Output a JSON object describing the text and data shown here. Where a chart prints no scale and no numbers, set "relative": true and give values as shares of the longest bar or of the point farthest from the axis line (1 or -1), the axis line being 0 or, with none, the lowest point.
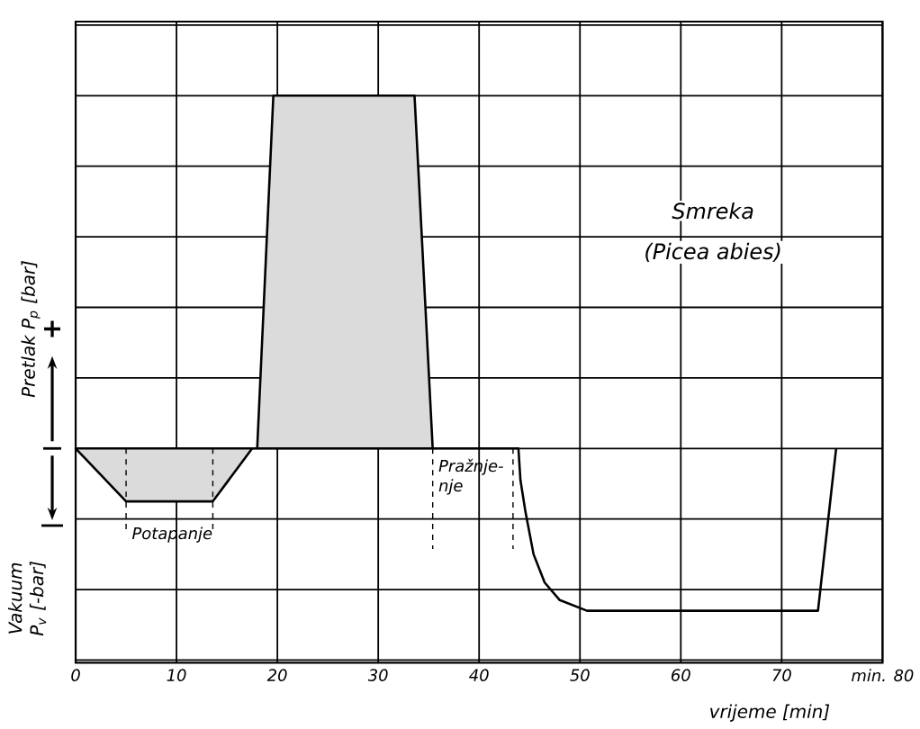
{
  "chart_data": {
    "type": "line",
    "relative": true,
    "xlabel": "vrijeme [min]",
    "ylabel": "Pretlak P$_{p}$ [bar]",
    "xlim": [
      0,
      80
    ],
    "xticks": [
      0,
      10,
      20,
      30,
      40,
      50,
      60,
      70,
      {
        "value": 80,
        "label": "min. 80"
      }
    ],
    "tick_labels": "x",
    "grid": true,
    "line_style": "solid",
    "series": [
      {
        "type": "area",
        "color": "#000000",
        "x": [
          0,
          5,
          13.6,
          17.5,
          18,
          19.6,
          33.6,
          35.4
        ],
        "values": [
          0,
          -0.15,
          -0.15,
          0,
          0,
          1,
          1,
          0
        ]
      },
      {
        "color": "#000000",
        "x": [
          35.4,
          43.9,
          44.1,
          44.6,
          45.4,
          46.5,
          48,
          50.7,
          73.6,
          75.4
        ],
        "values": [
          0,
          0,
          -0.09,
          -0.18,
          -0.3,
          -0.38,
          -0.43,
          -0.46,
          -0.46,
          0
        ]
      }
    ],
    "annotations": [
      "Potapanje",
      "Pražnje-nje",
      "Smreka",
      "(Picea abies)",
      "Vakuum P$_{v}$ [-bar]",
      "+"
    ]
  }
}
